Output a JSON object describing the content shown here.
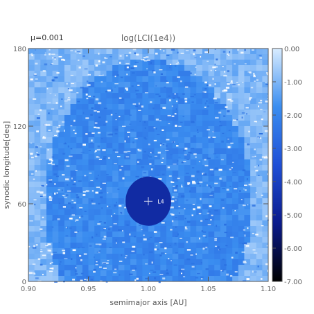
{
  "mu_label": "μ=0.001",
  "chart_data": {
    "type": "heatmap",
    "title": "log(LCI(1e4))",
    "xlabel": "semimajor axis [AU]",
    "ylabel": "synodic longitude[deg]",
    "xlim": [
      0.9,
      1.1
    ],
    "ylim": [
      0,
      180
    ],
    "x_ticks": [
      0.9,
      0.95,
      1.0,
      1.05,
      1.1
    ],
    "x_tick_labels": [
      "0.90",
      "0.95",
      "1.00",
      "1.05",
      "1.10"
    ],
    "y_ticks": [
      0,
      60,
      120,
      180
    ],
    "y_tick_labels": [
      "0",
      "60",
      "120",
      "180"
    ],
    "colorbar": {
      "range": [
        -7.0,
        0.0
      ],
      "ticks": [
        0,
        -1,
        -2,
        -3,
        -4,
        -5,
        -6,
        -7
      ],
      "tick_labels": [
        "0.00",
        "-1.00",
        "-2.00",
        "-3.00",
        "-4.00",
        "-5.00",
        "-6.00",
        "-7.00"
      ],
      "colors": [
        "#000000",
        "#0a1a8c",
        "#1f4fd6",
        "#3a8df0",
        "#d8ecff"
      ]
    },
    "annotations": [
      {
        "text": "L4",
        "x": 1.003,
        "y": 62
      }
    ],
    "background_value": -1.3,
    "regions": [
      {
        "name": "stable-core",
        "center": [
          1.0,
          62
        ],
        "radius_a": 0.019,
        "radius_deg": 19,
        "value": -4.7
      },
      {
        "name": "tadpole-band",
        "value": -1.9
      },
      {
        "name": "outer-chaos",
        "value": -1.0
      }
    ]
  }
}
